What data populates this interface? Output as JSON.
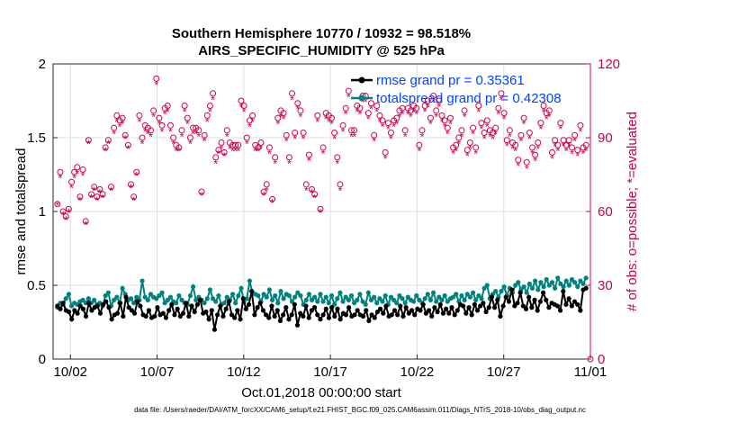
{
  "chart_data": {
    "type": "line",
    "title": "Southern Hemisphere 10770 / 10932 = 98.518%",
    "subtitle": "AIRS_SPECIFIC_HUMIDITY @ 525 hPa",
    "xlabel": "Oct.01,2018 00:00:00 start",
    "ylabel": "rmse and totalspread",
    "y2label": "# of obs: o=possible; *=evaluated",
    "footnote": "data file: /Users/raeder/DAI/ATM_forcXX/CAM6_setup/f.e21.FHIST_BGC.f09_025.CAM6assim.011/Diags_NTrS_2018-10/obs_diag_output.nc",
    "xlim": [
      1,
      32
    ],
    "ylim": [
      0,
      2
    ],
    "y2lim": [
      0,
      120
    ],
    "x_ticks": [
      {
        "x": 2,
        "label": "10/02"
      },
      {
        "x": 7,
        "label": "10/07"
      },
      {
        "x": 12,
        "label": "10/12"
      },
      {
        "x": 17,
        "label": "10/17"
      },
      {
        "x": 22,
        "label": "10/22"
      },
      {
        "x": 27,
        "label": "10/27"
      },
      {
        "x": 32,
        "label": "11/01"
      }
    ],
    "y_ticks": [
      "0",
      "0.5",
      "1",
      "1.5",
      "2"
    ],
    "y2_ticks": [
      "0",
      "30",
      "60",
      "90",
      "120"
    ],
    "legend": [
      "rmse grand pr = 0.35361",
      "totalspread grand pr = 0.42308"
    ],
    "colors": {
      "rmse": "#000000",
      "spread": "#00827f",
      "obs": "#d0004f",
      "legend_text": "#0044ff"
    },
    "series": [
      {
        "name": "rmse",
        "values": [
          0.36,
          0.34,
          0.38,
          0.33,
          0.32,
          0.27,
          0.33,
          0.31,
          0.36,
          0.34,
          0.29,
          0.38,
          0.33,
          0.35,
          0.36,
          0.31,
          0.37,
          0.39,
          0.35,
          0.27,
          0.3,
          0.31,
          0.38,
          0.29,
          0.42,
          0.35,
          0.33,
          0.31,
          0.39,
          0.36,
          0.3,
          0.29,
          0.33,
          0.28,
          0.29,
          0.35,
          0.3,
          0.31,
          0.28,
          0.33,
          0.37,
          0.3,
          0.34,
          0.29,
          0.31,
          0.38,
          0.29,
          0.36,
          0.32,
          0.37,
          0.4,
          0.31,
          0.32,
          0.27,
          0.33,
          0.2,
          0.3,
          0.36,
          0.29,
          0.34,
          0.39,
          0.3,
          0.28,
          0.33,
          0.27,
          0.41,
          0.34,
          0.37,
          0.46,
          0.3,
          0.35,
          0.38,
          0.33,
          0.3,
          0.28,
          0.36,
          0.29,
          0.33,
          0.26,
          0.3,
          0.35,
          0.27,
          0.3,
          0.37,
          0.23,
          0.31,
          0.29,
          0.36,
          0.28,
          0.33,
          0.35,
          0.3,
          0.27,
          0.3,
          0.34,
          0.28,
          0.35,
          0.29,
          0.34,
          0.27,
          0.31,
          0.3,
          0.35,
          0.29,
          0.3,
          0.33,
          0.3,
          0.29,
          0.33,
          0.26,
          0.3,
          0.28,
          0.32,
          0.34,
          0.31,
          0.36,
          0.29,
          0.3,
          0.33,
          0.3,
          0.36,
          0.29,
          0.35,
          0.31,
          0.33,
          0.3,
          0.34,
          0.33,
          0.37,
          0.31,
          0.33,
          0.29,
          0.35,
          0.32,
          0.37,
          0.31,
          0.34,
          0.31,
          0.35,
          0.3,
          0.33,
          0.37,
          0.36,
          0.31,
          0.35,
          0.3,
          0.37,
          0.33,
          0.36,
          0.38,
          0.32,
          0.35,
          0.42,
          0.35,
          0.4,
          0.29,
          0.36,
          0.42,
          0.39,
          0.47,
          0.36,
          0.38,
          0.45,
          0.36,
          0.34,
          0.42,
          0.35,
          0.4,
          0.33,
          0.39,
          0.45,
          0.4,
          0.35,
          0.38,
          0.37,
          0.36,
          0.33,
          0.46,
          0.37,
          0.41,
          0.36,
          0.39,
          0.37,
          0.33,
          0.47,
          0.48
        ]
      },
      {
        "name": "totalspread",
        "values": [
          0.35,
          0.38,
          0.37,
          0.41,
          0.44,
          0.36,
          0.38,
          0.37,
          0.39,
          0.4,
          0.38,
          0.41,
          0.38,
          0.4,
          0.37,
          0.38,
          0.36,
          0.43,
          0.45,
          0.36,
          0.4,
          0.42,
          0.38,
          0.48,
          0.44,
          0.4,
          0.41,
          0.38,
          0.42,
          0.4,
          0.53,
          0.42,
          0.4,
          0.44,
          0.42,
          0.41,
          0.43,
          0.45,
          0.38,
          0.4,
          0.42,
          0.39,
          0.38,
          0.43,
          0.4,
          0.38,
          0.37,
          0.43,
          0.49,
          0.4,
          0.42,
          0.4,
          0.38,
          0.41,
          0.47,
          0.41,
          0.39,
          0.43,
          0.37,
          0.38,
          0.42,
          0.4,
          0.44,
          0.38,
          0.43,
          0.48,
          0.39,
          0.41,
          0.53,
          0.45,
          0.44,
          0.43,
          0.39,
          0.44,
          0.42,
          0.47,
          0.4,
          0.43,
          0.38,
          0.46,
          0.41,
          0.44,
          0.43,
          0.39,
          0.42,
          0.45,
          0.43,
          0.37,
          0.4,
          0.44,
          0.4,
          0.42,
          0.39,
          0.44,
          0.39,
          0.42,
          0.38,
          0.43,
          0.37,
          0.41,
          0.45,
          0.39,
          0.42,
          0.4,
          0.43,
          0.38,
          0.4,
          0.44,
          0.39,
          0.37,
          0.45,
          0.4,
          0.42,
          0.38,
          0.41,
          0.39,
          0.43,
          0.37,
          0.42,
          0.4,
          0.38,
          0.43,
          0.41,
          0.38,
          0.42,
          0.4,
          0.39,
          0.43,
          0.4,
          0.38,
          0.41,
          0.44,
          0.4,
          0.45,
          0.39,
          0.42,
          0.4,
          0.43,
          0.39,
          0.41,
          0.42,
          0.44,
          0.39,
          0.43,
          0.4,
          0.44,
          0.42,
          0.45,
          0.4,
          0.43,
          0.41,
          0.48,
          0.5,
          0.41,
          0.44,
          0.46,
          0.42,
          0.46,
          0.49,
          0.43,
          0.48,
          0.45,
          0.5,
          0.52,
          0.47,
          0.49,
          0.45,
          0.51,
          0.48,
          0.53,
          0.47,
          0.52,
          0.49,
          0.54,
          0.5,
          0.52,
          0.48,
          0.55,
          0.51,
          0.49,
          0.53,
          0.5,
          0.54,
          0.52,
          0.49,
          0.53,
          0.51,
          0.55
        ]
      },
      {
        "name": "possible",
        "axis": "right",
        "values": [
          63,
          76,
          60,
          58,
          61,
          72,
          76,
          78,
          66,
          77,
          56,
          89,
          67,
          70,
          66,
          69,
          67,
          86,
          89,
          70,
          94,
          99,
          97,
          98,
          91,
          87,
          71,
          66,
          76,
          99,
          90,
          95,
          94,
          93,
          101,
          114,
          98,
          95,
          102,
          103,
          95,
          90,
          87,
          86,
          93,
          103,
          98,
          90,
          94,
          94,
          93,
          68,
          91,
          99,
          103,
          108,
          82,
          85,
          88,
          84,
          93,
          88,
          87,
          87,
          87,
          105,
          103,
          90,
          97,
          99,
          87,
          86,
          88,
          68,
          71,
          86,
          65,
          82,
          98,
          101,
          100,
          91,
          82,
          108,
          92,
          104,
          101,
          92,
          71,
          83,
          69,
          67,
          99,
          61,
          86,
          100,
          99,
          98,
          92,
          82,
          71,
          95,
          102,
          109,
          93,
          93,
          103,
          102,
          107,
          107,
          100,
          104,
          91,
          103,
          99,
          97,
          84,
          96,
          92,
          97,
          98,
          101,
          102,
          93,
          102,
          101,
          103,
          102,
          87,
          93,
          103,
          105,
          98,
          107,
          101,
          105,
          99,
          97,
          94,
          98,
          86,
          87,
          90,
          93,
          101,
          85,
          88,
          94,
          86,
          103,
          96,
          92,
          97,
          93,
          92,
          94,
          102,
          108,
          100,
          89,
          93,
          88,
          87,
          81,
          91,
          98,
          80,
          92,
          86,
          83,
          88,
          96,
          103,
          100,
          101,
          84,
          89,
          87,
          96,
          89,
          87,
          89,
          86,
          91,
          85,
          95,
          86,
          87
        ]
      },
      {
        "name": "evaluated",
        "axis": "right",
        "values": [
          63,
          74,
          59,
          57,
          60,
          70,
          74,
          76,
          65,
          75,
          55,
          88,
          66,
          69,
          65,
          68,
          66,
          85,
          88,
          69,
          92,
          97,
          95,
          96,
          90,
          86,
          70,
          65,
          75,
          97,
          88,
          93,
          92,
          91,
          99,
          112,
          96,
          93,
          100,
          101,
          93,
          88,
          85,
          85,
          91,
          101,
          96,
          88,
          92,
          92,
          91,
          67,
          89,
          97,
          101,
          106,
          80,
          84,
          86,
          83,
          91,
          86,
          85,
          85,
          85,
          103,
          101,
          88,
          95,
          97,
          85,
          85,
          86,
          67,
          69,
          84,
          64,
          80,
          96,
          99,
          98,
          89,
          80,
          106,
          90,
          102,
          99,
          90,
          69,
          81,
          68,
          66,
          97,
          60,
          84,
          98,
          97,
          96,
          90,
          80,
          69,
          93,
          100,
          107,
          91,
          91,
          101,
          100,
          105,
          105,
          98,
          102,
          89,
          101,
          97,
          95,
          82,
          94,
          90,
          95,
          96,
          99,
          100,
          91,
          100,
          99,
          101,
          100,
          85,
          91,
          101,
          103,
          96,
          105,
          99,
          103,
          97,
          95,
          92,
          96,
          84,
          85,
          88,
          91,
          99,
          83,
          86,
          92,
          84,
          101,
          94,
          90,
          95,
          91,
          90,
          92,
          100,
          106,
          98,
          87,
          91,
          86,
          85,
          79,
          89,
          96,
          78,
          90,
          84,
          81,
          86,
          94,
          101,
          98,
          99,
          82,
          87,
          85,
          94,
          87,
          85,
          87,
          84,
          89,
          83,
          93,
          84,
          85
        ]
      }
    ]
  }
}
